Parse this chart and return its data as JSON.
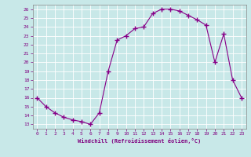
{
  "x": [
    0,
    1,
    2,
    3,
    4,
    5,
    6,
    7,
    8,
    9,
    10,
    11,
    12,
    13,
    14,
    15,
    16,
    17,
    18,
    19,
    20,
    21,
    22,
    23
  ],
  "y": [
    16.0,
    15.0,
    14.3,
    13.8,
    13.5,
    13.3,
    13.0,
    14.3,
    19.0,
    22.5,
    23.0,
    23.8,
    24.0,
    25.5,
    26.0,
    26.0,
    25.8,
    25.3,
    24.8,
    24.2,
    20.0,
    23.2,
    18.0,
    16.0
  ],
  "line_color": "#880088",
  "marker": "+",
  "marker_size": 4,
  "xlim": [
    -0.5,
    23.5
  ],
  "ylim": [
    12.5,
    26.5
  ],
  "yticks": [
    13,
    14,
    15,
    16,
    17,
    18,
    19,
    20,
    21,
    22,
    23,
    24,
    25,
    26
  ],
  "xticks": [
    0,
    1,
    2,
    3,
    4,
    5,
    6,
    7,
    8,
    9,
    10,
    11,
    12,
    13,
    14,
    15,
    16,
    17,
    18,
    19,
    20,
    21,
    22,
    23
  ],
  "xlabel": "Windchill (Refroidissement éolien,°C)",
  "background_color": "#c8e8e8",
  "grid_color": "#aacccc",
  "spine_color": "#888888",
  "tick_color": "#800080",
  "label_color": "#800080"
}
